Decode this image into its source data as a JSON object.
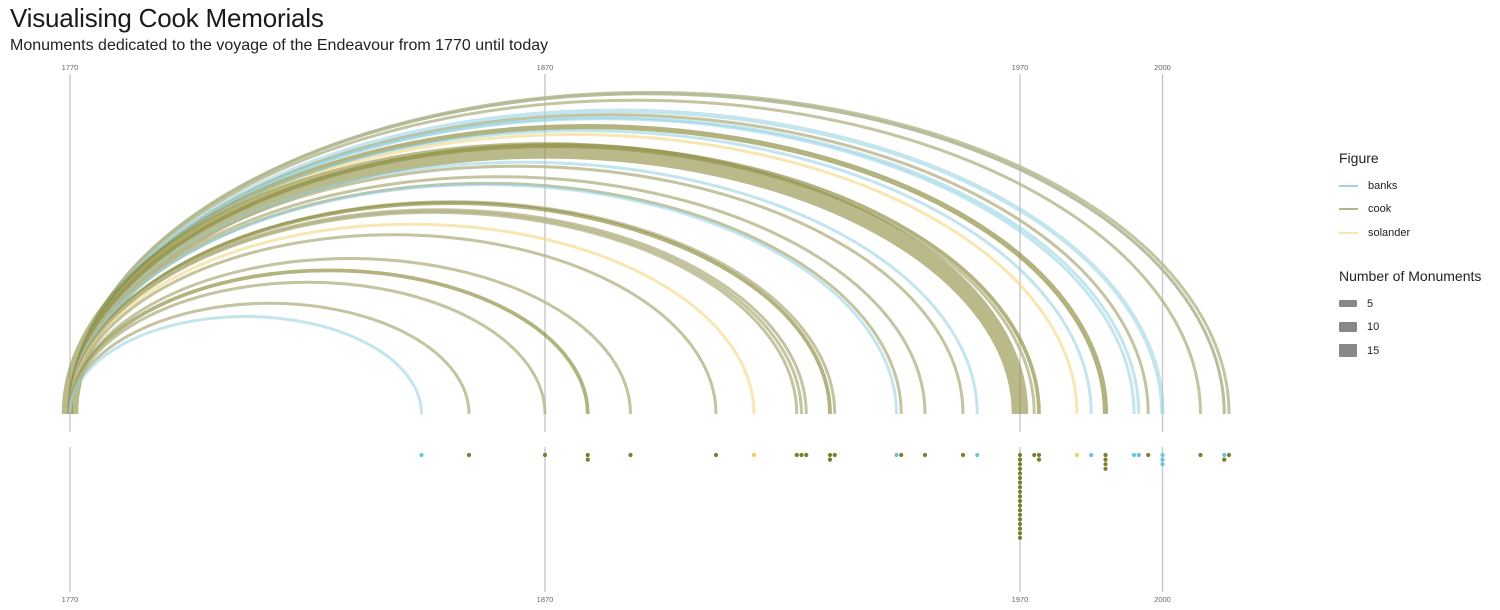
{
  "title": "Visualising Cook Memorials",
  "subtitle": "Monuments dedicated to the voyage of the Endeavour from 1770 until today",
  "legend": {
    "figure_title": "Figure",
    "figure_items": [
      {
        "label": "banks",
        "color": "#7ec8d8"
      },
      {
        "label": "cook",
        "color": "#9a9a6a"
      },
      {
        "label": "solander",
        "color": "#f7dc8e"
      }
    ],
    "size_title": "Number of Monuments",
    "size_items": [
      {
        "label": "5",
        "value": 5
      },
      {
        "label": "10",
        "value": 10
      },
      {
        "label": "15",
        "value": 15
      }
    ]
  },
  "chart_data": {
    "type": "arc timeline with dot plot",
    "x_axis": {
      "ticks": [
        1770,
        1870,
        1970,
        2000
      ]
    },
    "origin_year": 1770,
    "colors": {
      "banks": "#8fd0e0",
      "cook": "#8a8a3a",
      "solander": "#f5d98a",
      "cook_light": "#b5b58a"
    },
    "arcs": [
      {
        "year": 1844,
        "figure": "banks",
        "count": 1
      },
      {
        "year": 1854,
        "figure": "cook",
        "count": 1
      },
      {
        "year": 1870,
        "figure": "cook",
        "count": 1
      },
      {
        "year": 1879,
        "figure": "cook",
        "count": 2
      },
      {
        "year": 1888,
        "figure": "cook",
        "count": 1
      },
      {
        "year": 1906,
        "figure": "cook",
        "count": 1
      },
      {
        "year": 1914,
        "figure": "solander",
        "count": 1
      },
      {
        "year": 1923,
        "figure": "cook",
        "count": 1
      },
      {
        "year": 1924,
        "figure": "cook",
        "count": 1
      },
      {
        "year": 1925,
        "figure": "cook",
        "count": 1
      },
      {
        "year": 1930,
        "figure": "cook",
        "count": 2
      },
      {
        "year": 1931,
        "figure": "cook",
        "count": 1
      },
      {
        "year": 1944,
        "figure": "banks",
        "count": 1
      },
      {
        "year": 1945,
        "figure": "cook",
        "count": 1
      },
      {
        "year": 1950,
        "figure": "cook",
        "count": 1
      },
      {
        "year": 1958,
        "figure": "cook",
        "count": 1
      },
      {
        "year": 1961,
        "figure": "banks",
        "count": 1
      },
      {
        "year": 1970,
        "figure": "cook",
        "count": 19
      },
      {
        "year": 1973,
        "figure": "cook",
        "count": 1
      },
      {
        "year": 1974,
        "figure": "cook",
        "count": 2
      },
      {
        "year": 1982,
        "figure": "solander",
        "count": 1
      },
      {
        "year": 1985,
        "figure": "banks",
        "count": 1
      },
      {
        "year": 1988,
        "figure": "cook",
        "count": 4
      },
      {
        "year": 1994,
        "figure": "banks",
        "count": 1
      },
      {
        "year": 1995,
        "figure": "banks",
        "count": 1
      },
      {
        "year": 1997,
        "figure": "cook",
        "count": 1
      },
      {
        "year": 2000,
        "figure": "banks",
        "count": 3
      },
      {
        "year": 2008,
        "figure": "cook",
        "count": 1
      },
      {
        "year": 2013,
        "figure": "banks",
        "count": 1
      },
      {
        "year": 2013,
        "figure": "cook",
        "count": 1
      },
      {
        "year": 2014,
        "figure": "cook",
        "count": 1
      }
    ]
  }
}
